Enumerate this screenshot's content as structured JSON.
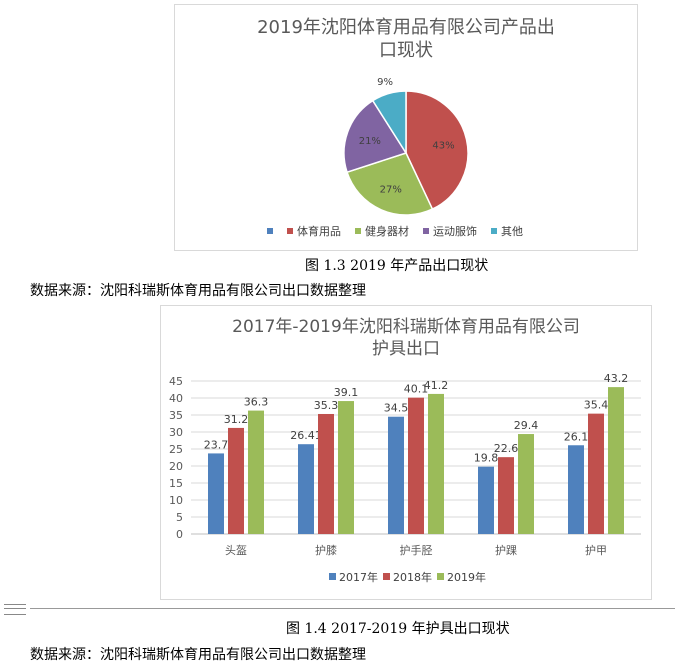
{
  "chart_data": [
    {
      "type": "pie",
      "title_lines": [
        "2019年沈阳体育用品有限公司产品出",
        "口现状"
      ],
      "categories": [
        "体育用品",
        "健身器材",
        "运动服饰",
        "其他"
      ],
      "values": [
        43,
        27,
        21,
        9
      ],
      "labels": [
        "43%",
        "27%",
        "21%",
        "9%"
      ],
      "colors": [
        "#C0504D",
        "#9BBB59",
        "#8064A2",
        "#4BACC6"
      ],
      "legend_position": "bottom",
      "legend_extra_marker_color": "#4F81BD"
    },
    {
      "type": "bar",
      "title_lines": [
        "2017年-2019年沈阳科瑞斯体育用品有限公司",
        "护具出口"
      ],
      "categories": [
        "头盔",
        "护膝",
        "护手胫",
        "护踝",
        "护甲"
      ],
      "series": [
        {
          "name": "2017年",
          "values": [
            23.7,
            26.41,
            34.5,
            19.8,
            26.1
          ],
          "labels": [
            "23.7",
            "26.41",
            "34.5",
            "19.8",
            "26.1"
          ],
          "color": "#4F81BD"
        },
        {
          "name": "2018年",
          "values": [
            31.2,
            35.3,
            40.1,
            22.6,
            35.4
          ],
          "labels": [
            "31.2",
            "35.3",
            "40.1",
            "22.6",
            "35.4"
          ],
          "color": "#C0504D"
        },
        {
          "name": "2019年",
          "values": [
            36.3,
            39.1,
            41.2,
            29.4,
            43.2
          ],
          "labels": [
            "36.3",
            "39.1",
            "41.2",
            "29.4",
            "43.2"
          ],
          "color": "#9BBB59"
        }
      ],
      "ylim": [
        0,
        45
      ],
      "yticks": [
        0,
        5,
        10,
        15,
        20,
        25,
        30,
        35,
        40,
        45
      ],
      "grid": true,
      "legend_position": "bottom"
    }
  ],
  "captions": {
    "fig13": "图 1.3 2019 年产品出口现状",
    "source1": "数据来源：沈阳科瑞斯体育用品有限公司出口数据整理",
    "fig14": "图 1.4 2017-2019 年护具出口现状",
    "source2": "数据来源：沈阳科瑞斯体育用品有限公司出口数据整理"
  }
}
